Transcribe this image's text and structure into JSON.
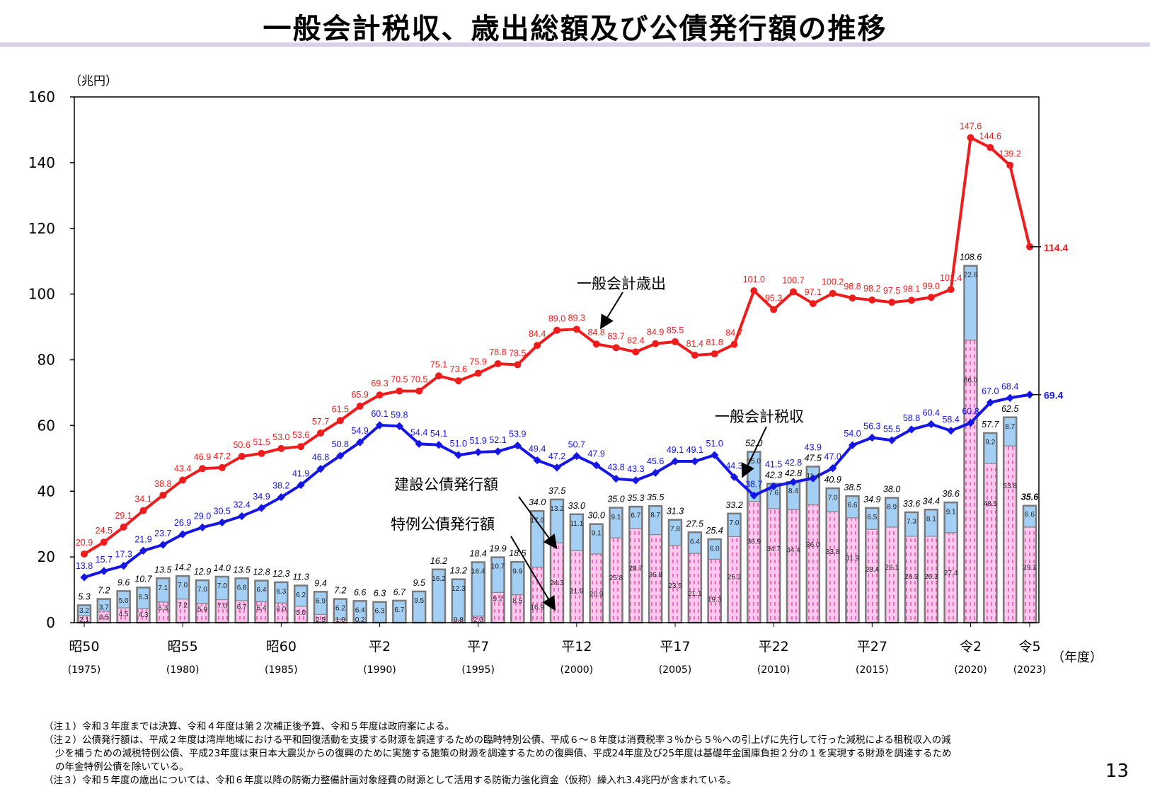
{
  "title": "一般会計税収、歳出総額及び公債発行額の推移",
  "page_number": "13",
  "notes": [
    "（注１）令和３年度までは決算、令和４年度は第２次補正後予算、令和５年度は政府案による。",
    "（注２）公債発行額は、平成２年度は湾岸地域における平和回復活動を支援する財源を調達するための臨時特別公債、平成６～８年度は消費税率３％から５％への引上げに先行して行った減税による租税収入の減",
    "少を補うための減税特例公債、平成23年度は東日本大震災からの復興のために実施する施策の財源を調達するための復興債、平成24年度及び25年度は基礎年金国庫負担２分の１を実現する財源を調達するため",
    "の年金特例公債を除いている。",
    "（注３）令和５年度の歳出については、令和６年度以降の防衛力整備計画対象経費の財源として活用する防衛力強化資金（仮称）繰入れ3.4兆円が含まれている。"
  ],
  "chart_data": {
    "type": "bar+line",
    "ylabel": "（兆円）",
    "xlabel": "（年度）",
    "ylim": [
      0,
      160
    ],
    "yticks": [
      0,
      20,
      40,
      60,
      80,
      100,
      120,
      140,
      160
    ],
    "grid": false,
    "years": [
      1975,
      1976,
      1977,
      1978,
      1979,
      1980,
      1981,
      1982,
      1983,
      1984,
      1985,
      1986,
      1987,
      1988,
      1989,
      1990,
      1991,
      1992,
      1993,
      1994,
      1995,
      1996,
      1997,
      1998,
      1999,
      2000,
      2001,
      2002,
      2003,
      2004,
      2005,
      2006,
      2007,
      2008,
      2009,
      2010,
      2011,
      2012,
      2013,
      2014,
      2015,
      2016,
      2017,
      2018,
      2019,
      2020,
      2021,
      2022,
      2023
    ],
    "xticks": [
      {
        "year": 1975,
        "era": "昭50",
        "label": "(1975)"
      },
      {
        "year": 1980,
        "era": "昭55",
        "label": "(1980)"
      },
      {
        "year": 1985,
        "era": "昭60",
        "label": "(1985)"
      },
      {
        "year": 1990,
        "era": "平2",
        "label": "(1990)"
      },
      {
        "year": 1995,
        "era": "平7",
        "label": "(1995)"
      },
      {
        "year": 2000,
        "era": "平12",
        "label": "(2000)"
      },
      {
        "year": 2005,
        "era": "平17",
        "label": "(2005)"
      },
      {
        "year": 2010,
        "era": "平22",
        "label": "(2010)"
      },
      {
        "year": 2015,
        "era": "平27",
        "label": "(2015)"
      },
      {
        "year": 2020,
        "era": "令2",
        "label": "(2020)"
      },
      {
        "year": 2023,
        "era": "令5",
        "label": "(2023)"
      }
    ],
    "series": [
      {
        "name": "一般会計歳出",
        "kind": "line",
        "color": "#ee1c1c",
        "values": [
          20.9,
          24.5,
          29.1,
          34.1,
          38.8,
          43.4,
          46.9,
          47.2,
          50.6,
          51.5,
          53.0,
          53.6,
          57.7,
          61.5,
          65.9,
          69.3,
          70.5,
          70.5,
          75.1,
          73.6,
          75.9,
          78.8,
          78.5,
          84.4,
          89.0,
          89.3,
          84.8,
          83.7,
          82.4,
          84.9,
          85.5,
          81.4,
          81.8,
          84.7,
          101.0,
          95.3,
          100.7,
          97.1,
          100.2,
          98.8,
          98.2,
          97.5,
          98.1,
          99.0,
          101.4,
          147.6,
          144.6,
          139.2,
          114.4
        ]
      },
      {
        "name": "一般会計税収",
        "kind": "line",
        "color": "#1515e6",
        "values": [
          13.8,
          15.7,
          17.3,
          21.9,
          23.7,
          26.9,
          29.0,
          30.5,
          32.4,
          34.9,
          38.2,
          41.9,
          46.8,
          50.8,
          54.9,
          60.1,
          59.8,
          54.4,
          54.1,
          51.0,
          51.9,
          52.1,
          53.9,
          49.4,
          47.2,
          50.7,
          47.9,
          43.8,
          43.3,
          45.6,
          49.1,
          49.1,
          51.0,
          44.3,
          38.7,
          41.5,
          42.8,
          43.9,
          47.0,
          54.0,
          56.3,
          55.5,
          58.8,
          60.4,
          58.4,
          60.8,
          67.0,
          68.4,
          69.4
        ]
      },
      {
        "name": "建設公債発行額",
        "kind": "bar",
        "color": "#a3cff5",
        "values": [
          3.2,
          3.7,
          5.0,
          6.3,
          7.1,
          7.0,
          7.0,
          7.0,
          6.8,
          6.4,
          6.3,
          6.2,
          6.9,
          6.2,
          6.4,
          6.3,
          6.7,
          9.5,
          16.2,
          12.3,
          16.4,
          10.7,
          9.9,
          17.0,
          13.2,
          11.1,
          9.1,
          9.1,
          6.7,
          8.7,
          7.8,
          6.4,
          6.0,
          7.0,
          15.0,
          7.6,
          8.4,
          11.4,
          7.0,
          6.6,
          6.5,
          8.9,
          7.3,
          8.1,
          9.1,
          22.6,
          9.2,
          8.7,
          6.6
        ]
      },
      {
        "name": "特例公債発行額",
        "kind": "bar",
        "color": "#ffc6ee",
        "values": [
          2.1,
          3.5,
          4.5,
          4.3,
          6.3,
          7.2,
          5.9,
          7.0,
          6.7,
          6.4,
          6.0,
          5.0,
          2.5,
          1.0,
          0.2,
          0,
          0,
          0,
          0,
          0.8,
          2.0,
          9.2,
          8.5,
          16.9,
          24.3,
          21.9,
          20.9,
          25.8,
          28.7,
          26.8,
          23.5,
          21.1,
          19.3,
          26.2,
          36.9,
          34.7,
          34.4,
          36.0,
          33.8,
          31.9,
          28.4,
          29.1,
          26.3,
          26.3,
          27.4,
          86.0,
          48.5,
          53.8,
          29.1
        ]
      },
      {
        "name": "公債発行額",
        "kind": "total",
        "values": [
          5.3,
          7.2,
          9.6,
          10.7,
          13.5,
          14.2,
          12.9,
          14.0,
          13.5,
          12.8,
          12.3,
          11.3,
          9.4,
          7.2,
          6.6,
          6.3,
          6.7,
          9.5,
          16.2,
          13.2,
          18.4,
          19.9,
          18.5,
          34.0,
          37.5,
          33.0,
          30.0,
          35.0,
          35.3,
          35.5,
          31.3,
          27.5,
          25.4,
          33.2,
          52.0,
          42.3,
          42.8,
          47.5,
          40.9,
          38.5,
          34.9,
          38.0,
          33.6,
          34.4,
          36.6,
          108.6,
          57.7,
          62.5,
          35.6
        ]
      }
    ],
    "annotations": [
      "一般会計歳出",
      "一般会計税収",
      "建設公債発行額",
      "特例公債発行額"
    ]
  }
}
